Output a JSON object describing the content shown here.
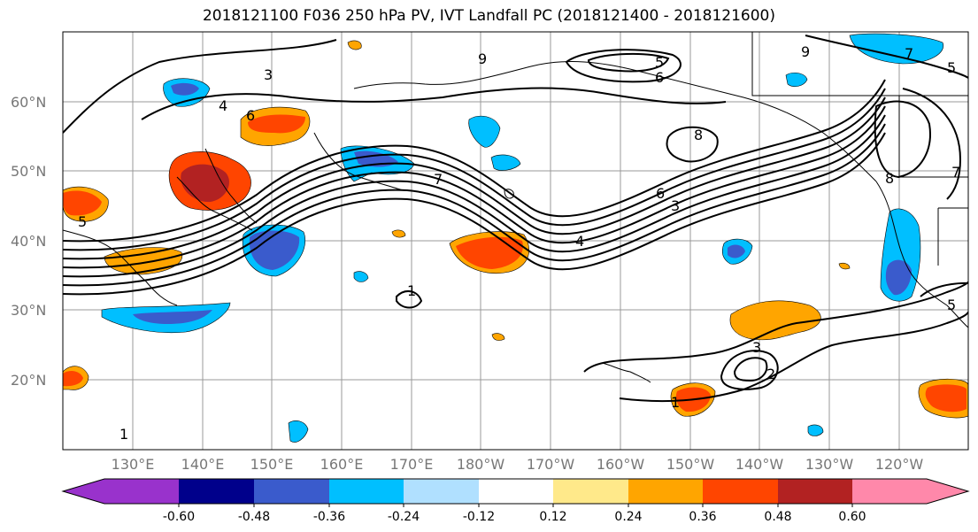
{
  "title": "2018121100 F036 250 hPa PV, IVT Landfall PC (2018121400 - 2018121600)",
  "lat_labels": [
    "60°N",
    "50°N",
    "40°N",
    "30°N",
    "20°N"
  ],
  "lon_labels": [
    "130°E",
    "140°E",
    "150°E",
    "160°E",
    "170°E",
    "180°W",
    "170°W",
    "160°W",
    "150°W",
    "140°W",
    "130°W",
    "120°W"
  ],
  "colorbar": {
    "colors": [
      "#9932CC",
      "#00008B",
      "#3A5BCC",
      "#00BFFF",
      "#B0E0FF",
      "#FFFFFF",
      "#FFE98A",
      "#FFA500",
      "#FF4500",
      "#B22222",
      "#FF88AA"
    ],
    "tick_labels": [
      "-0.60",
      "-0.48",
      "-0.36",
      "-0.24",
      "-0.12",
      "0.12",
      "0.24",
      "0.36",
      "0.48",
      "0.60"
    ]
  },
  "contour_labels": [
    "3",
    "4",
    "6",
    "6",
    "5",
    "9",
    "5",
    "7",
    "8",
    "9",
    "8",
    "6",
    "3",
    "4",
    "7",
    "5",
    "1",
    "3",
    "2",
    "1",
    "7",
    "1",
    "5"
  ]
}
